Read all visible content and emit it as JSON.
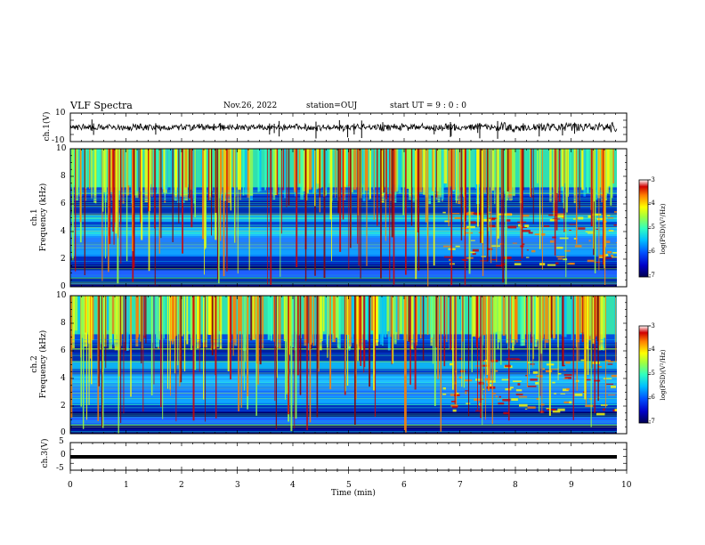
{
  "header": {
    "title": "VLF Spectra",
    "date": "Nov.26, 2022",
    "station": "station=OUJ",
    "start_ut": "start  UT =   9 : 0  : 0"
  },
  "colors": {
    "spectrogram": [
      "#000050",
      "#0000c8",
      "#0050ff",
      "#00c0ff",
      "#30ffc0",
      "#a0ff40",
      "#ffff00",
      "#ff8000",
      "#d00000",
      "#8b0000"
    ],
    "trace": "#000000",
    "frame": "#000000"
  },
  "chart_data": [
    {
      "type": "line",
      "name": "ch1-waveform",
      "ylabel": "ch.1(V)",
      "ylim": [
        -10,
        10
      ],
      "yticks": [
        "10",
        "-10"
      ],
      "xlim": [
        0,
        10
      ],
      "baseline": 0,
      "values_description_level": [
        -2,
        2
      ]
    },
    {
      "type": "heatmap",
      "name": "ch1-spectrogram",
      "ylabel": "ch.1\nFrequency  (kHz)",
      "ylim": [
        0,
        10
      ],
      "yticks": [
        "10",
        "8",
        "6",
        "4",
        "2",
        "0"
      ],
      "xlim": [
        0,
        10
      ],
      "colorbar": {
        "label": "log(PSD)(V²/Hz)",
        "range": [
          -7,
          -3
        ],
        "ticks": [
          "-3",
          "-4",
          "-5",
          "-6",
          "-7"
        ]
      }
    },
    {
      "type": "heatmap",
      "name": "ch2-spectrogram",
      "ylabel": "ch.2\nFrequency  (kHz)",
      "ylim": [
        0,
        10
      ],
      "yticks": [
        "10",
        "8",
        "6",
        "4",
        "2",
        "0"
      ],
      "xlim": [
        0,
        10
      ],
      "colorbar": {
        "label": "log(PSD)(V²/Hz)",
        "range": [
          -7,
          -3
        ],
        "ticks": [
          "-3",
          "-4",
          "-5",
          "-6",
          "-7"
        ]
      }
    },
    {
      "type": "line",
      "name": "ch3-waveform",
      "ylabel": "ch.3(V)",
      "ylim": [
        -5,
        5
      ],
      "yticks": [
        "5",
        "0",
        "-5"
      ],
      "xlim": [
        0,
        10
      ],
      "values": [
        -1,
        -1
      ]
    }
  ],
  "xaxis": {
    "label": "Time  (min)",
    "ticks": [
      "0",
      "1",
      "2",
      "3",
      "4",
      "5",
      "6",
      "7",
      "8",
      "9",
      "10"
    ]
  },
  "ylabels": {
    "ch1_wave": "ch.1(V)",
    "ch1_spec": "ch.1",
    "ch1_spec_units": "Frequency  (kHz)",
    "ch2_spec": "ch.2",
    "ch2_spec_units": "Frequency  (kHz)",
    "ch3_wave": "ch.3(V)"
  },
  "colorbar_label": "log(PSD)(V²/Hz)"
}
